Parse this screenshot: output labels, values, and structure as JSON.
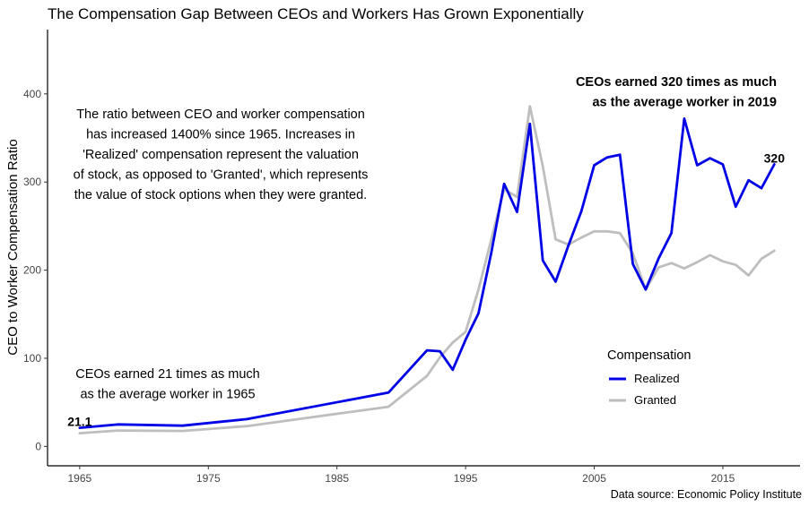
{
  "chart_data": {
    "type": "line",
    "title": "The Compensation Gap Between CEOs and Workers Has Grown Exponentially",
    "xlabel": "",
    "ylabel": "CEO to Worker Compensation Ratio",
    "xlim": [
      1962.5,
      2021
    ],
    "ylim": [
      -22,
      473
    ],
    "x_ticks": [
      1965,
      1975,
      1985,
      1995,
      2005,
      2015
    ],
    "y_ticks": [
      0,
      100,
      200,
      300,
      400
    ],
    "grid": false,
    "legend": {
      "title": "Compensation",
      "placement": "right-inside",
      "entries": [
        "Realized",
        "Granted"
      ]
    },
    "series": [
      {
        "name": "Realized",
        "color": "#0000e6",
        "x": [
          1965,
          1968,
          1973,
          1978,
          1989,
          1992,
          1993,
          1994,
          1995,
          1996,
          1997,
          1998,
          1999,
          2000,
          2001,
          2002,
          2003,
          2004,
          2005,
          2006,
          2007,
          2008,
          2009,
          2010,
          2011,
          2012,
          2013,
          2014,
          2015,
          2016,
          2017,
          2018,
          2019
        ],
        "values": [
          21.1,
          25,
          23.5,
          31,
          61,
          109,
          108,
          87,
          121,
          151,
          220,
          298,
          266,
          366,
          211,
          187,
          228,
          267,
          319,
          328,
          331,
          207,
          178,
          213,
          242,
          372,
          319,
          327,
          320,
          272,
          302,
          293,
          320
        ]
      },
      {
        "name": "Granted",
        "color": "#bebebe",
        "x": [
          1965,
          1968,
          1973,
          1978,
          1989,
          1992,
          1993,
          1994,
          1995,
          1996,
          1997,
          1998,
          1999,
          2000,
          2001,
          2002,
          2003,
          2004,
          2005,
          2006,
          2007,
          2008,
          2009,
          2010,
          2011,
          2012,
          2013,
          2014,
          2015,
          2016,
          2017,
          2018,
          2019
        ],
        "values": [
          15,
          18,
          17.5,
          23,
          45,
          80,
          101,
          118,
          130,
          178,
          235,
          292,
          283,
          386,
          318,
          235,
          229,
          237,
          244,
          244,
          242,
          219,
          178,
          203,
          208,
          202,
          209,
          217,
          210,
          206,
          194,
          213,
          222
        ]
      }
    ],
    "annotations": {
      "summary_lines": [
        "The ratio between CEO and worker compensation",
        "has increased 1400% since 1965. Increases in",
        "'Realized' compensation represent the valuation",
        "of stock, as opposed to 'Granted', which represents",
        "the value of stock options when they were granted."
      ],
      "start_lines": [
        "CEOs earned 21 times as much",
        "as the average worker in 1965"
      ],
      "end_lines": [
        "CEOs earned 320 times as much",
        "as the average worker in 2019"
      ],
      "start_value_label": "21.1",
      "end_value_label": "320"
    },
    "source": "Data source: Economic Policy Institute"
  }
}
